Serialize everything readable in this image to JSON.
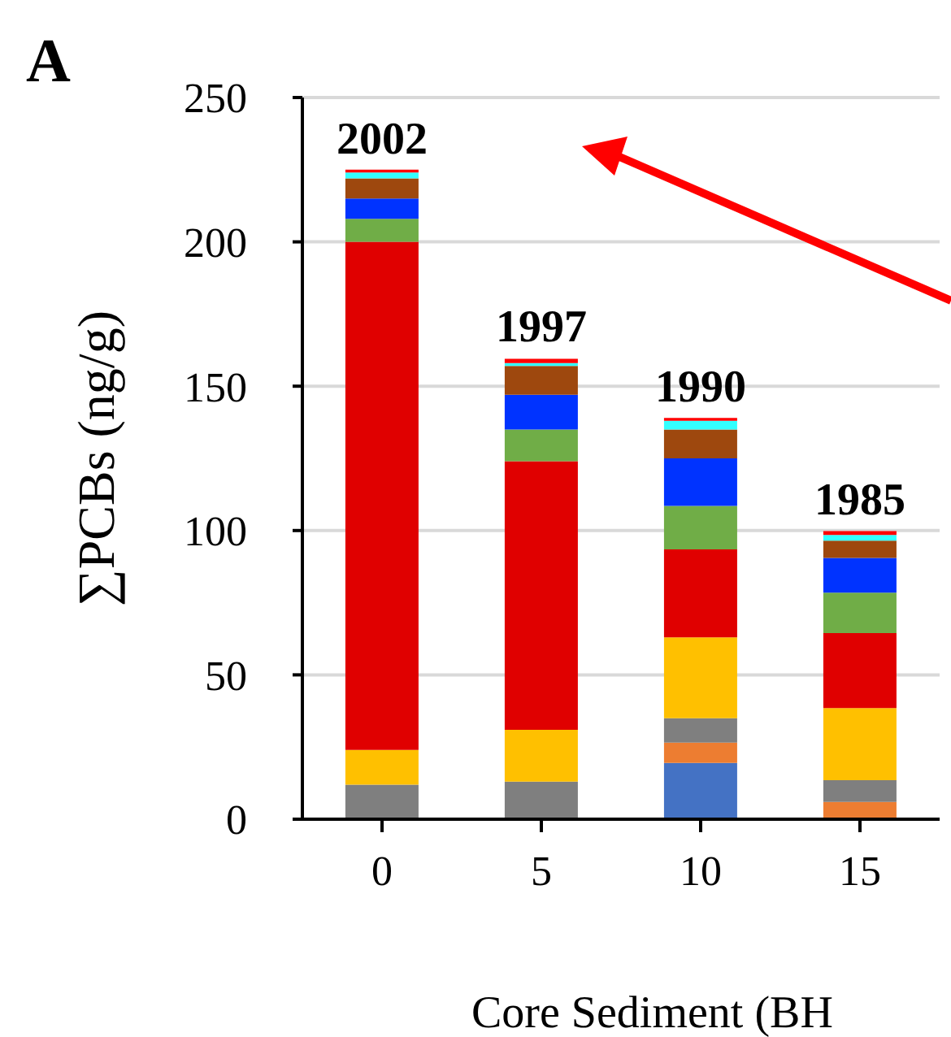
{
  "chart_data": {
    "type": "bar",
    "title": "A",
    "xlabel": "Core Sediment (BH",
    "ylabel": "∑PCBs (ng/g)",
    "stacked": true,
    "grid": "y",
    "categories": [
      "0",
      "5",
      "10",
      "15"
    ],
    "ylim": [
      0,
      250
    ],
    "yticks": [
      0,
      50,
      100,
      150,
      200,
      250
    ],
    "series": [
      {
        "color": "#4472c4",
        "values": [
          0,
          0,
          19.5,
          0
        ]
      },
      {
        "color": "#ed7d31",
        "values": [
          0,
          0,
          7,
          6
        ]
      },
      {
        "color": "#7f7f7f",
        "values": [
          12,
          13,
          8.5,
          7.5
        ]
      },
      {
        "color": "#ffc000",
        "values": [
          12,
          18,
          28,
          25
        ]
      },
      {
        "color": "#e00000",
        "values": [
          176,
          93,
          30.5,
          26
        ]
      },
      {
        "color": "#70ad47",
        "values": [
          8,
          11,
          15,
          14
        ]
      },
      {
        "color": "#0033ff",
        "values": [
          7,
          12,
          16.5,
          12
        ]
      },
      {
        "color": "#9e480e",
        "values": [
          7,
          10,
          10,
          6
        ]
      },
      {
        "color": "#33ffff",
        "values": [
          2,
          1,
          3,
          2
        ]
      },
      {
        "color": "#ff0000",
        "values": [
          1,
          1.5,
          1,
          1.3
        ]
      }
    ],
    "annotations": [
      {
        "text": "2002",
        "x": "0",
        "y": 225
      },
      {
        "text": "1997",
        "x": "5",
        "y": 160
      },
      {
        "text": "1990",
        "x": "10",
        "y": 139
      },
      {
        "text": "1985",
        "x": "15",
        "y": 100
      }
    ]
  }
}
